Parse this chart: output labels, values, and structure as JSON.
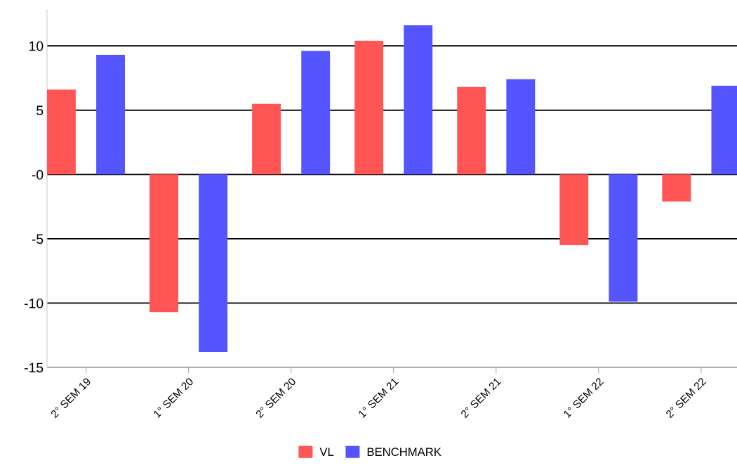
{
  "chart_data": {
    "type": "bar",
    "categories": [
      "2° SEM 19",
      "1° SEM 20",
      "2° SEM 20",
      "1° SEM 21",
      "2° SEM 21",
      "1° SEM 22",
      "2° SEM 22"
    ],
    "series": [
      {
        "name": "VL",
        "color": "#ff5555",
        "values": [
          6.6,
          -10.7,
          5.5,
          10.4,
          6.8,
          -5.5,
          -2.1
        ]
      },
      {
        "name": "BENCHMARK",
        "color": "#5555ff",
        "values": [
          9.3,
          -13.8,
          9.6,
          11.6,
          7.4,
          -9.9,
          6.9
        ]
      }
    ],
    "ylim": [
      -15,
      12.8
    ],
    "yticks": [
      -15,
      -10,
      -5,
      {
        "value": 0,
        "label": "-0"
      },
      5,
      10
    ],
    "grid": "y",
    "legend": "bottom"
  }
}
